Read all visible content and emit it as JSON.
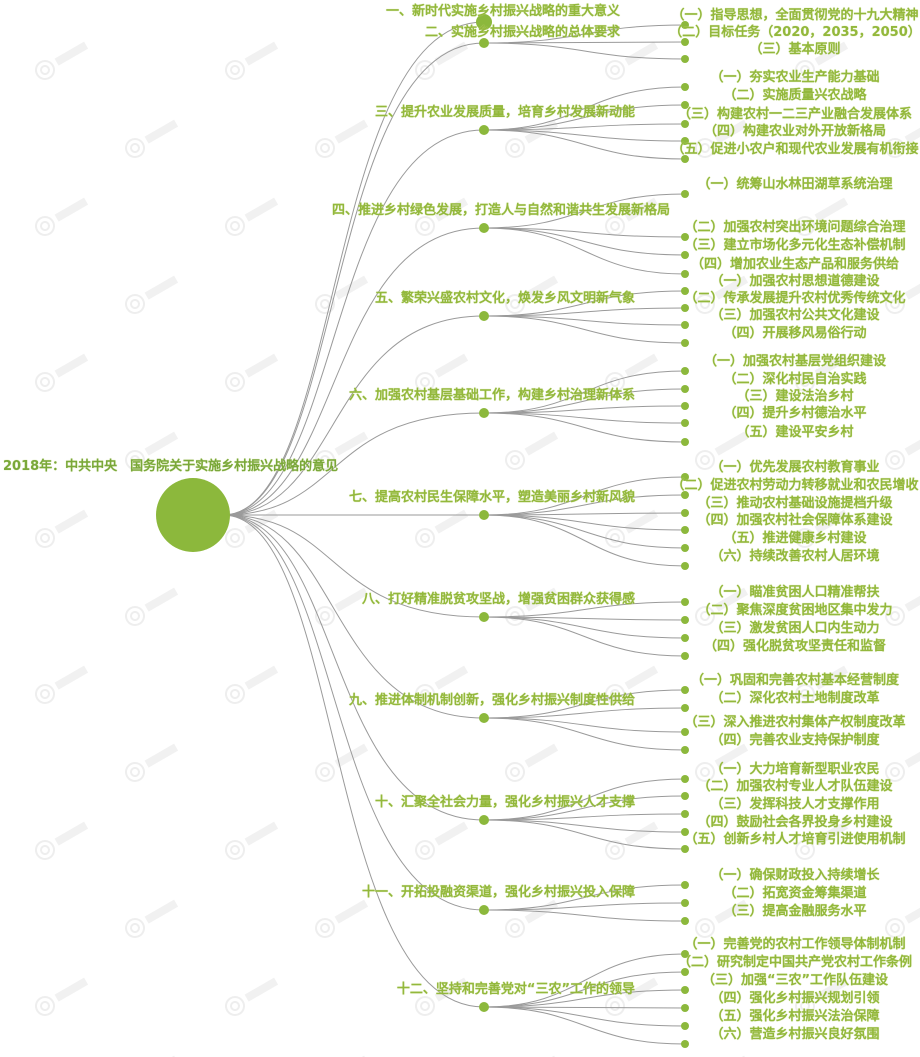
{
  "colors": {
    "node": "#8cb83c",
    "text": "#93b83c",
    "line": "#9a9a9a"
  },
  "root": {
    "label": "2018年：中共中央　国务院关于实施乡村振兴战略的意见"
  },
  "watermark": "农小蜂",
  "branches": [
    {
      "label": "一、新时代实施乡村振兴战略的重大意义",
      "children": []
    },
    {
      "label": "二、实施乡村振兴战略的总体要求",
      "children": [
        "（一）指导思想，全面贯彻党的十九大精神",
        "（二）目标任务（2020，2035，2050）",
        "（三）基本原则"
      ]
    },
    {
      "label": "三、提升农业发展质量，培育乡村发展新动能",
      "children": [
        "（一）夯实农业生产能力基础",
        "（二）实施质量兴农战略",
        "（三）构建农村一二三产业融合发展体系",
        "（四）构建农业对外开放新格局",
        "（五）促进小农户和现代农业发展有机衔接"
      ]
    },
    {
      "label": "四、推进乡村绿色发展，打造人与自然和谐共生发展新格局",
      "children": [
        "（一）统筹山水林田湖草系统治理",
        "（二）加强农村突出环境问题综合治理",
        "（三）建立市场化多元化生态补偿机制",
        "（四）增加农业生态产品和服务供给"
      ]
    },
    {
      "label": "五、繁荣兴盛农村文化，焕发乡风文明新气象",
      "children": [
        "（一）加强农村思想道德建设",
        "（二）传承发展提升农村优秀传统文化",
        "（三）加强农村公共文化建设",
        "（四）开展移风易俗行动"
      ]
    },
    {
      "label": "六、加强农村基层基础工作，构建乡村治理新体系",
      "children": [
        "（一）加强农村基层党组织建设",
        "（二）深化村民自治实践",
        "（三）建设法治乡村",
        "（四）提升乡村德治水平",
        "（五）建设平安乡村"
      ]
    },
    {
      "label": "七、提高农村民生保障水平，塑造美丽乡村新风貌",
      "children": [
        "（一）优先发展农村教育事业",
        "（二）促进农村劳动力转移就业和农民增收",
        "（三）推动农村基础设施提档升级",
        "（四）加强农村社会保障体系建设",
        "（五）推进健康乡村建设",
        "（六）持续改善农村人居环境"
      ]
    },
    {
      "label": "八、打好精准脱贫攻坚战，增强贫困群众获得感",
      "children": [
        "（一）瞄准贫困人口精准帮扶",
        "（二）聚焦深度贫困地区集中发力",
        "（三）激发贫困人口内生动力",
        "（四）强化脱贫攻坚责任和监督"
      ]
    },
    {
      "label": "九、推进体制机制创新，强化乡村振兴制度性供给",
      "children": [
        "（一）巩固和完善农村基本经营制度",
        "（二）深化农村土地制度改革",
        "（三）深入推进农村集体产权制度改革",
        "（四）完善农业支持保护制度"
      ]
    },
    {
      "label": "十、汇聚全社会力量，强化乡村振兴人才支撑",
      "children": [
        "（一）大力培育新型职业农民",
        "（二）加强农村专业人才队伍建设",
        "（三）发挥科技人才支撑作用",
        "（四）鼓励社会各界投身乡村建设",
        "（五）创新乡村人才培育引进使用机制"
      ]
    },
    {
      "label": "十一、开拓投融资渠道，强化乡村振兴投入保障",
      "children": [
        "（一）确保财政投入持续增长",
        "（二）拓宽资金筹集渠道",
        "（三）提高金融服务水平"
      ]
    },
    {
      "label": "十二、坚持和完善党对“三农”工作的领导",
      "children": [
        "（一）完善党的农村工作领导体制机制",
        "（二）研究制定中国共产党农村工作条例",
        "（三）加强“三农”工作队伍建设",
        "（四）强化乡村振兴规划引领",
        "（五）强化乡村振兴法治保障",
        "（六）营造乡村振兴良好氛围"
      ]
    }
  ]
}
